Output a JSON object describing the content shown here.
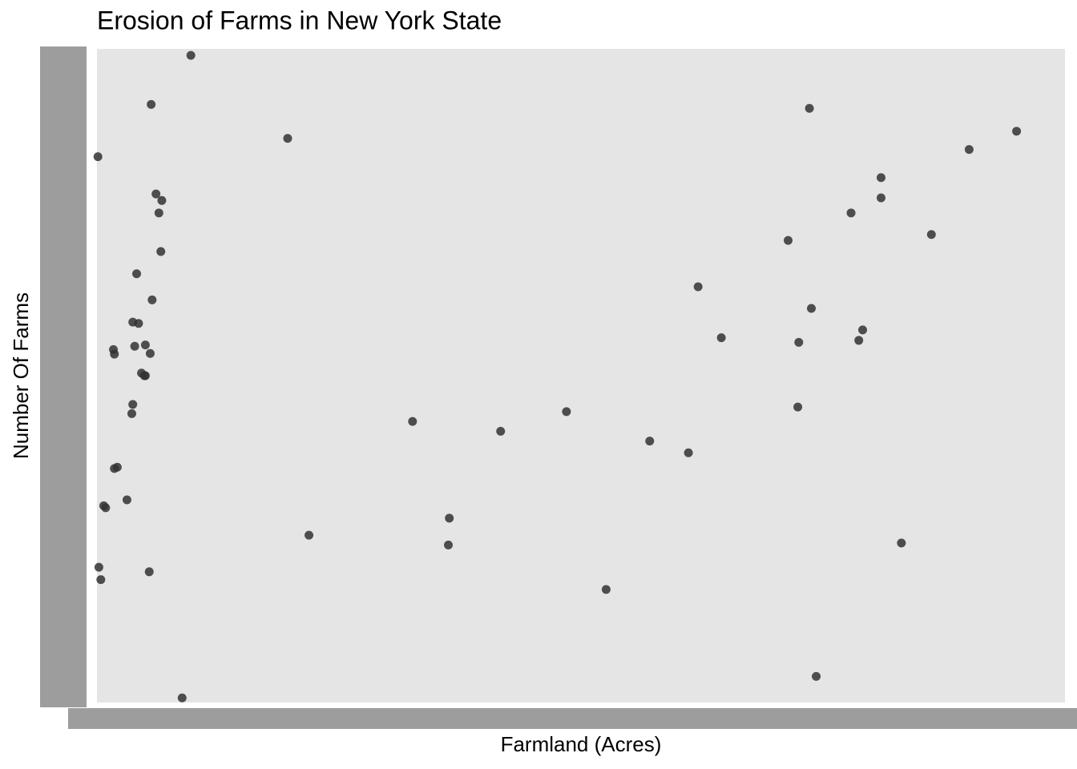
{
  "chart_data": {
    "type": "scatter",
    "title": "Erosion of Farms in New York State",
    "x_label": "Farmland (Acres)",
    "y_label": "Number Of Farms",
    "color": "#333333",
    "xlim": [
      0,
      100
    ],
    "ylim": [
      0,
      100
    ],
    "x": [
      9.7,
      5.6,
      73.6,
      95.0,
      19.7,
      90.1,
      0.1,
      81.0,
      6.1,
      6.7,
      81.0,
      6.4,
      77.9,
      86.2,
      71.4,
      6.6,
      4.1,
      62.1,
      5.7,
      73.8,
      3.7,
      4.3,
      79.1,
      64.5,
      72.5,
      78.7,
      3.9,
      5.0,
      1.7,
      1.8,
      5.5,
      4.6,
      4.9,
      5.0,
      72.4,
      48.5,
      3.7,
      3.6,
      32.6,
      41.7,
      57.1,
      61.1,
      2.1,
      1.8,
      3.1,
      0.7,
      0.9,
      36.4,
      21.9,
      83.1,
      36.3,
      0.2,
      0.4,
      5.4,
      52.6,
      74.3,
      8.8
    ],
    "values": [
      99.0,
      91.5,
      90.9,
      87.4,
      86.3,
      84.6,
      83.5,
      80.3,
      77.8,
      76.8,
      77.2,
      74.9,
      74.9,
      71.6,
      70.7,
      69.0,
      65.6,
      63.6,
      61.6,
      60.3,
      58.2,
      58.0,
      57.0,
      55.8,
      55.1,
      55.4,
      54.5,
      54.7,
      54.0,
      53.3,
      53.4,
      50.4,
      50.0,
      50.0,
      45.2,
      44.5,
      45.6,
      44.2,
      43.0,
      41.5,
      40.0,
      38.2,
      36.0,
      35.8,
      31.0,
      30.1,
      29.8,
      28.2,
      25.6,
      24.4,
      24.1,
      20.7,
      18.8,
      20.0,
      17.3,
      4.0,
      0.7
    ]
  }
}
